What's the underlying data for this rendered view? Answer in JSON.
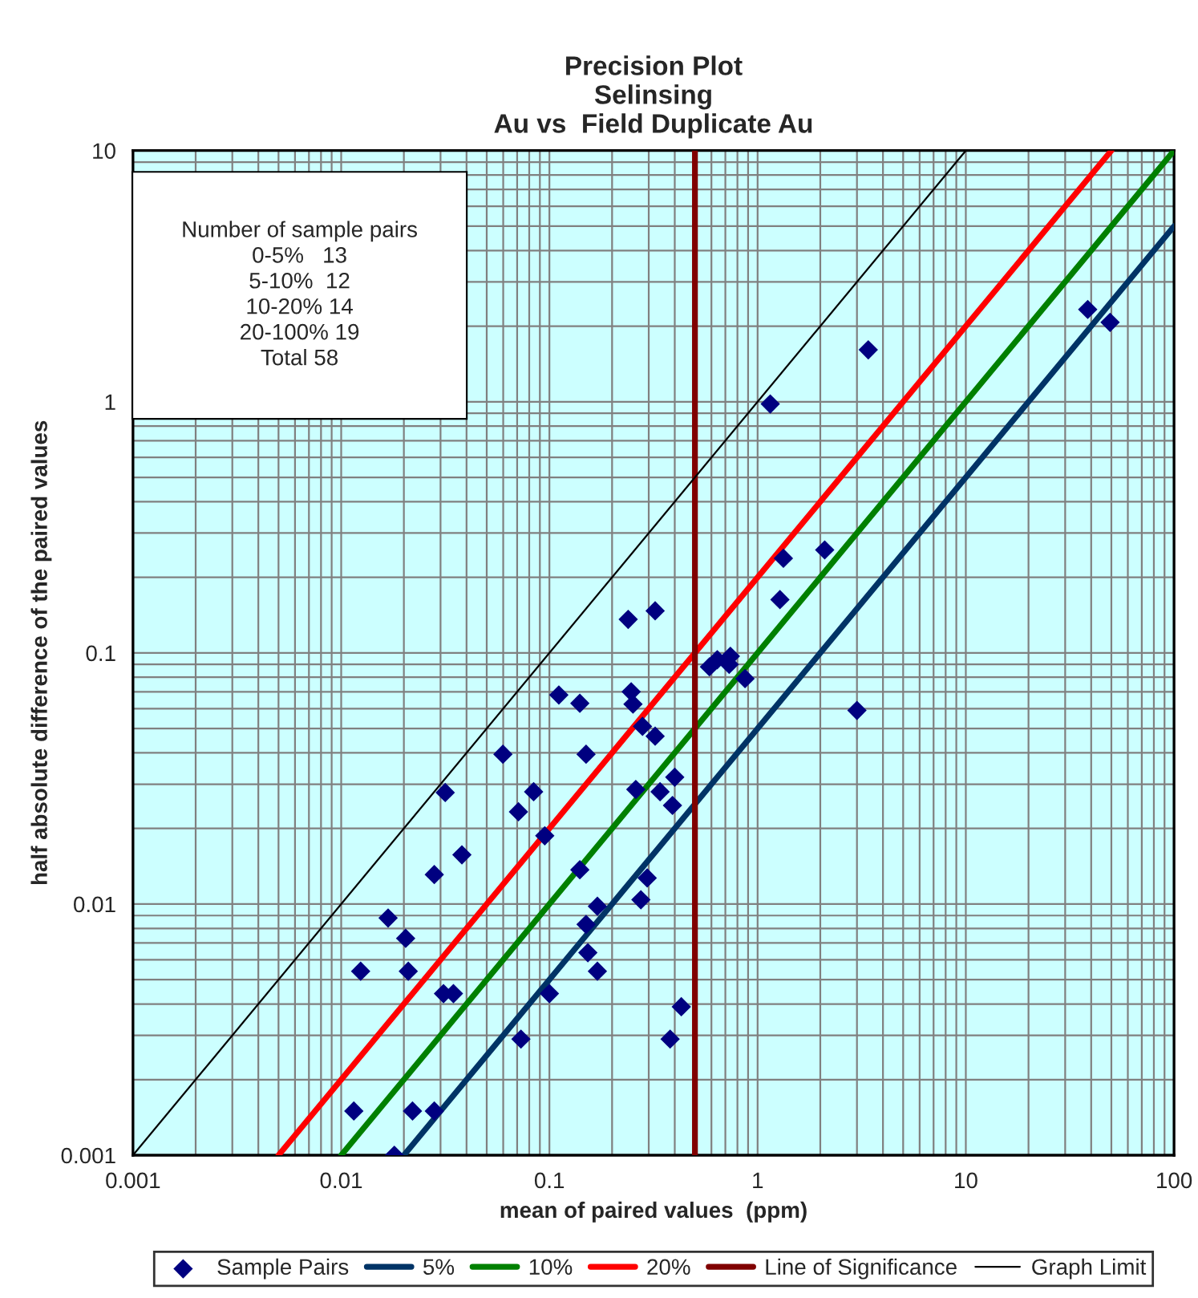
{
  "chart_data": {
    "type": "scatter",
    "title": "Precision Plot",
    "subtitle": "Selinsing\nAu vs  Field Duplicate Au",
    "xlabel": "mean of paired values  (ppm)",
    "ylabel": "half absolute difference of the paired values",
    "log": "xy",
    "xlim": [
      0.001,
      100
    ],
    "ylim": [
      0.001,
      10
    ],
    "xticks": [
      0.001,
      0.01,
      0.1,
      1,
      10,
      100
    ],
    "yticks": [
      0.001,
      0.01,
      0.1,
      1,
      10
    ],
    "grid": true,
    "legend": "bottom",
    "annotations": [
      "Number of sample pairs",
      "0-5%   13",
      "5-10%  12",
      "10-20% 14",
      "20-100% 19",
      "Total 58"
    ],
    "series": [
      {
        "name": "Sample Pairs",
        "marker": "diamond",
        "color": "#000080",
        "x": [
          38.5,
          49.3,
          3.4,
          1.15,
          1.33,
          2.1,
          1.28,
          0.87,
          3.0,
          0.587,
          0.64,
          0.74,
          0.73,
          0.239,
          0.322,
          0.111,
          0.14,
          0.247,
          0.252,
          0.28,
          0.322,
          0.0598,
          0.15,
          0.0316,
          0.084,
          0.071,
          0.26,
          0.34,
          0.4,
          0.39,
          0.095,
          0.038,
          0.028,
          0.14,
          0.295,
          0.275,
          0.17,
          0.15,
          0.0168,
          0.0204,
          0.021,
          0.153,
          0.17,
          0.031,
          0.0346,
          0.1,
          0.43,
          0.073,
          0.38,
          0.0115,
          0.022,
          0.028,
          0.018,
          0.0124
        ],
        "values": [
          2.33,
          2.07,
          1.61,
          0.98,
          0.238,
          0.257,
          0.163,
          0.079,
          0.059,
          0.088,
          0.094,
          0.097,
          0.09,
          0.136,
          0.147,
          0.068,
          0.063,
          0.07,
          0.0625,
          0.051,
          0.0466,
          0.0395,
          0.0395,
          0.0278,
          0.028,
          0.0233,
          0.0286,
          0.028,
          0.032,
          0.0247,
          0.0187,
          0.0157,
          0.0131,
          0.0137,
          0.0127,
          0.0104,
          0.0098,
          0.0083,
          0.0088,
          0.0073,
          0.0054,
          0.0064,
          0.0054,
          0.0044,
          0.0044,
          0.0044,
          0.0039,
          0.0029,
          0.0029,
          0.0015,
          0.0015,
          0.0015,
          0.001,
          0.0054
        ]
      },
      {
        "name": "5%",
        "type": "line",
        "color": "#003366",
        "x": [
          0.02,
          100
        ],
        "values": [
          0.001,
          5
        ]
      },
      {
        "name": "10%",
        "type": "line",
        "color": "#008000",
        "x": [
          0.01,
          100
        ],
        "values": [
          0.001,
          10
        ]
      },
      {
        "name": "20%",
        "type": "line",
        "color": "#ff0000",
        "x": [
          0.005,
          50
        ],
        "values": [
          0.001,
          10
        ]
      },
      {
        "name": "Line of Significance",
        "type": "line",
        "color": "#800000",
        "x": [
          0.5,
          0.5
        ],
        "values": [
          0.001,
          10
        ]
      },
      {
        "name": "Graph Limit",
        "type": "line",
        "color": "#000000",
        "x": [
          0.001,
          10
        ],
        "values": [
          0.001,
          10
        ]
      }
    ]
  }
}
